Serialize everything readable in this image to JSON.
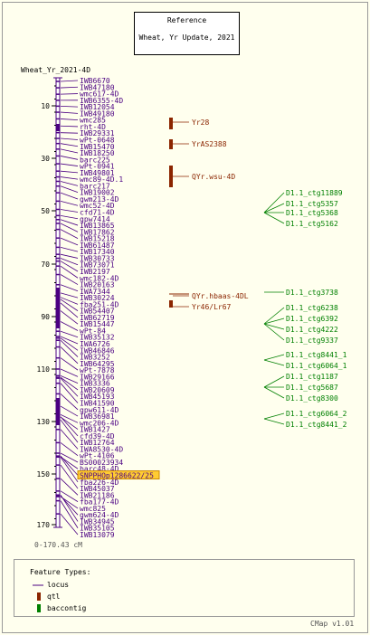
{
  "reference": {
    "line1": "Reference",
    "line2": "Wheat, Yr Update, 2021"
  },
  "map_title": "Wheat_Yr_2021-4D",
  "range": "0-170.43 cM",
  "axis_ticks": [
    "10",
    "30",
    "50",
    "70",
    "90",
    "110",
    "130",
    "150",
    "170"
  ],
  "markers": [
    "IWB6670",
    "IWB47180",
    "wmc617-4D",
    "IWB6355-4D",
    "IWB12054",
    "IWB49180",
    "wmc285",
    "rht-4D",
    "IWB29331",
    "wPt-0648",
    "IWB15470",
    "IWB18250",
    "barc225",
    "wPt-0941",
    "IWB49801",
    "wmc89-4D.1",
    "barc217",
    "IWB19002",
    "gwm213-4D",
    "wmc52-4D",
    "cfd71-4D",
    "gpw7414",
    "IWB13865",
    "IWB17862",
    "IWB15218",
    "IWB61487",
    "IWB17340",
    "IWB30733",
    "IWB73071",
    "IWB2197",
    "wmc182-4D",
    "IWB20163",
    "IWA7344",
    "IWB30224",
    "fba251-4D",
    "IWB54407",
    "IWB62719",
    "IWB15447",
    "wPt-84",
    "IWB35132",
    "IWA6726",
    "IWB46846",
    "IWB3252",
    "IWB64295",
    "wPt-7878",
    "IWB29166",
    "IWB3336",
    "IWB20609",
    "IWB45193",
    "IWB41590",
    "gpw611-4D",
    "IWB36981",
    "wmc206-4D",
    "IWB1427",
    "cfd39-4D",
    "IWB12764",
    "IWA8530-4D",
    "wPt-4106",
    "BS00023934",
    "barc48-4D",
    "SNPPHOp1286622/25",
    "fba226-4D",
    "IWB45037",
    "IWB21186",
    "fba177-4D",
    "wmc825",
    "gwm624-4D",
    "IWB34945",
    "IWB35105",
    "IWB13079"
  ],
  "highlight_marker": "SNPPHOp1286622/25",
  "qtls": [
    "Yr28",
    "YrAS2388",
    "QYr.wsu-4D",
    "QYr.hbaas-4DL",
    "Yr46/Lr67"
  ],
  "contigs": [
    "D1.1_ctg11889",
    "D1.1_ctg5357",
    "D1.1_ctg5368",
    "D1.1_ctg5162",
    "D1.1_ctg3738",
    "D1.1_ctg6238",
    "D1.1_ctg6392",
    "D1.1_ctg4222",
    "D1.1_ctg9337",
    "D1.1_ctg8441_1",
    "D1.1_ctg6064_1",
    "D1.1_ctg1187",
    "D1.1_ctg5687",
    "D1.1_ctg8300",
    "D1.1_ctg6064_2",
    "D1.1_ctg8441_2"
  ],
  "legend": {
    "header": "Feature Types:",
    "items": [
      "locus",
      "qtl",
      "baccontig"
    ]
  },
  "cmap_version": "CMap v1.01",
  "colors": {
    "locus": "#4b0082",
    "qtl": "#8b2500",
    "baccontig": "#008000",
    "highlight_bg": "#ffcc33",
    "axis": "#4b0082"
  }
}
